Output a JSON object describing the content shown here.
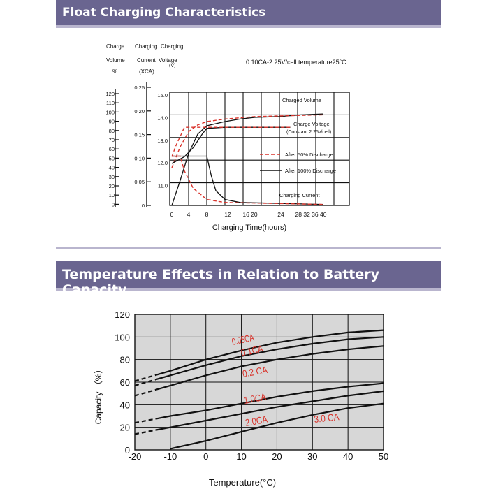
{
  "sections": {
    "float_title": "Float Charging Characteristics",
    "temp_title": "Temperature Effects in Relation to Battery Capacity"
  },
  "colors": {
    "banner": "#6a6590",
    "banner_rule": "#b9b5ce",
    "red": "#d9332b",
    "ink": "#111111",
    "plot_bg": "#d7d7d7"
  },
  "chart_data": [
    {
      "type": "line",
      "title": "Float Charging Characteristics",
      "condition": "0.10CA-2.25V/cell temperature25°C",
      "xlabel": "Charging Time(hours)",
      "x_ticks": [
        "0",
        "4",
        "8",
        "12",
        "16 20",
        "24",
        "28 32 36 40"
      ],
      "axis_headers": {
        "volume_1": "Charge",
        "volume_2": "Volume",
        "volume_3": "%",
        "current_1": "Charging",
        "current_2": "Current",
        "current_3": "(XCA)",
        "voltage_1": "Charging",
        "voltage_2": "Voltage",
        "voltage_3": "(V)"
      },
      "volume_ticks": [
        "120",
        "110",
        "100",
        "90",
        "80",
        "70",
        "60",
        "50",
        "40",
        "30",
        "20",
        "10",
        "0"
      ],
      "current_ticks": [
        "0.25",
        "0.20",
        "0.15",
        "0.10",
        "0.05",
        "0"
      ],
      "voltage_ticks": [
        "15.0",
        "14.0",
        "13.0",
        "12.0",
        "11.0"
      ],
      "annotations": {
        "charged_volume": "Charged Volume",
        "charge_voltage_1": "Charge Voltage",
        "charge_voltage_2": "(Constant 2.25v/cell)",
        "charging_current": "Charging Current"
      },
      "legend": [
        {
          "name": "After 50% Discharge",
          "style": "dashed",
          "color": "red"
        },
        {
          "name": "After 100% Discharge",
          "style": "solid",
          "color": "black"
        }
      ],
      "series": [
        {
          "name": "Charged Volume (after 100% discharge)",
          "unit": "%",
          "points": [
            [
              0,
              0
            ],
            [
              2,
              30
            ],
            [
              4,
              62
            ],
            [
              6,
              85
            ],
            [
              8,
              95
            ],
            [
              12,
              100
            ],
            [
              16,
              103
            ],
            [
              20,
              105
            ],
            [
              24,
              106
            ],
            [
              28,
              107
            ],
            [
              32,
              108
            ],
            [
              40,
              109
            ]
          ]
        },
        {
          "name": "Charged Volume (after 50% discharge)",
          "unit": "%",
          "points": [
            [
              0,
              45
            ],
            [
              2,
              70
            ],
            [
              4,
              88
            ],
            [
              6,
              96
            ],
            [
              8,
              100
            ],
            [
              12,
              103
            ],
            [
              20,
              106
            ],
            [
              40,
              108
            ]
          ]
        },
        {
          "name": "Charge Voltage (after 100% discharge)",
          "unit": "V",
          "points": [
            [
              0,
              11.9
            ],
            [
              3,
              12.2
            ],
            [
              5,
              12.6
            ],
            [
              7,
              13.2
            ],
            [
              8,
              13.45
            ],
            [
              12,
              13.5
            ],
            [
              20,
              13.5
            ],
            [
              28,
              13.5
            ]
          ]
        },
        {
          "name": "Charge Voltage (after 50% discharge)",
          "unit": "V",
          "points": [
            [
              0,
              12.2
            ],
            [
              1,
              12.7
            ],
            [
              3,
              13.5
            ],
            [
              12,
              13.5
            ],
            [
              28,
              13.5
            ]
          ]
        },
        {
          "name": "Charging Current (after 100% discharge)",
          "unit": "CA",
          "points": [
            [
              0,
              0.1
            ],
            [
              8,
              0.1
            ],
            [
              9,
              0.06
            ],
            [
              10,
              0.03
            ],
            [
              12,
              0.012
            ],
            [
              16,
              0.006
            ],
            [
              40,
              0.002
            ]
          ]
        },
        {
          "name": "Charging Current (after 50% discharge)",
          "unit": "CA",
          "points": [
            [
              0,
              0.1
            ],
            [
              2,
              0.1
            ],
            [
              3,
              0.07
            ],
            [
              5,
              0.035
            ],
            [
              8,
              0.012
            ],
            [
              12,
              0.006
            ],
            [
              40,
              0.002
            ]
          ]
        }
      ]
    },
    {
      "type": "line",
      "title": "Temperature Effects in Relation to Battery Capacity",
      "xlabel": "Temperature(°C)",
      "ylabel": "Capacity （%）",
      "xlim": [
        -20,
        50
      ],
      "ylim": [
        0,
        120
      ],
      "x_ticks": [
        "-20",
        "-10",
        "0",
        "10",
        "20",
        "30",
        "40",
        "50"
      ],
      "y_ticks": [
        "120",
        "100",
        "80",
        "60",
        "40",
        "20",
        "0"
      ],
      "grid": true,
      "series": [
        {
          "name": "0.05CA",
          "points": [
            [
              -20,
              61
            ],
            [
              -10,
              70
            ],
            [
              0,
              80
            ],
            [
              10,
              88
            ],
            [
              20,
              95
            ],
            [
              30,
              100
            ],
            [
              40,
              104
            ],
            [
              50,
              106
            ]
          ]
        },
        {
          "name": "0.1CA",
          "points": [
            [
              -20,
              57
            ],
            [
              -10,
              66
            ],
            [
              0,
              75
            ],
            [
              10,
              83
            ],
            [
              20,
              89
            ],
            [
              30,
              94
            ],
            [
              40,
              98
            ],
            [
              50,
              100
            ]
          ]
        },
        {
          "name": "0.2 CA",
          "points": [
            [
              -20,
              48
            ],
            [
              -10,
              57
            ],
            [
              0,
              66
            ],
            [
              10,
              74
            ],
            [
              20,
              80
            ],
            [
              30,
              85
            ],
            [
              40,
              89
            ],
            [
              50,
              92
            ]
          ]
        },
        {
          "name": "1.0CA",
          "points": [
            [
              -20,
              24
            ],
            [
              -10,
              30
            ],
            [
              0,
              35
            ],
            [
              10,
              41
            ],
            [
              20,
              47
            ],
            [
              30,
              52
            ],
            [
              40,
              56
            ],
            [
              50,
              59
            ]
          ]
        },
        {
          "name": "2.0CA",
          "points": [
            [
              -20,
              14
            ],
            [
              -10,
              20
            ],
            [
              0,
              26
            ],
            [
              10,
              32
            ],
            [
              20,
              38
            ],
            [
              30,
              43
            ],
            [
              40,
              48
            ],
            [
              50,
              52
            ]
          ]
        },
        {
          "name": "3.0 CA",
          "points": [
            [
              -10,
              1
            ],
            [
              0,
              8
            ],
            [
              10,
              16
            ],
            [
              20,
              24
            ],
            [
              30,
              31
            ],
            [
              40,
              37
            ],
            [
              50,
              41
            ]
          ]
        }
      ],
      "dashed_until": -14
    }
  ]
}
